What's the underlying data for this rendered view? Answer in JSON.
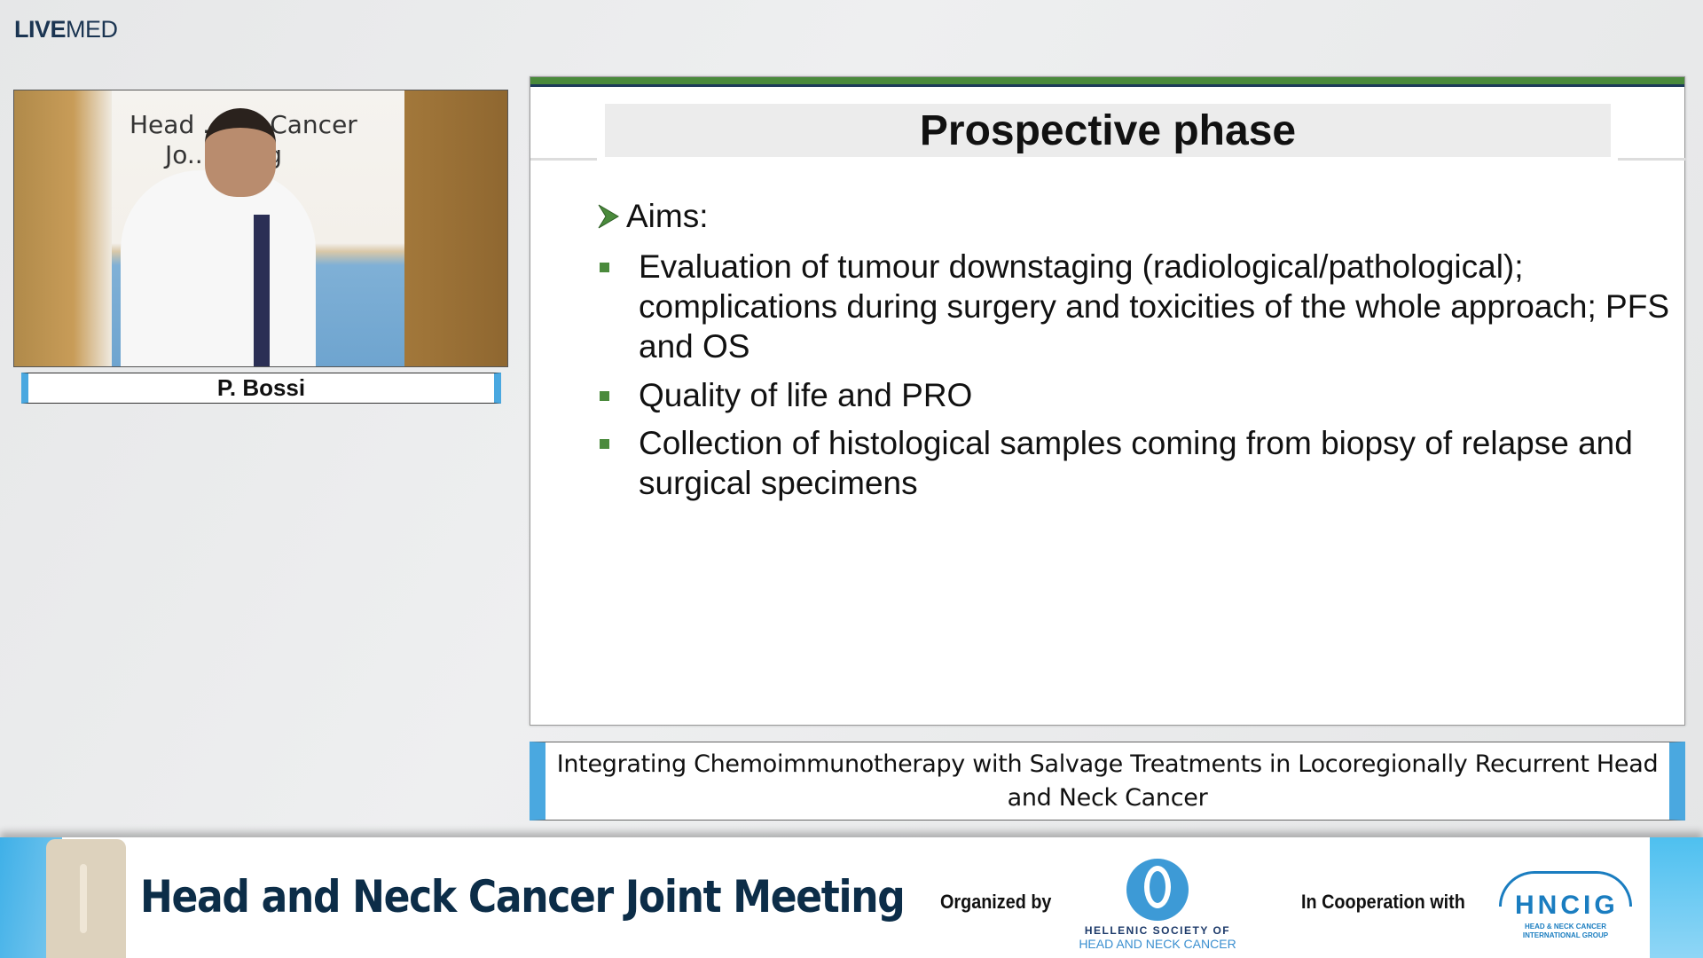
{
  "brand": {
    "bold": "LIVE",
    "light": "MED"
  },
  "video": {
    "backdrop_text_1": "Head ... ck Cancer",
    "backdrop_text_2": "Jo... eting",
    "speaker_name": "P. Bossi"
  },
  "slide": {
    "title": "Prospective phase",
    "aims_label": "Aims:",
    "bullets": [
      "Evaluation of tumour downstaging (radiological/pathological); complications during surgery and toxicities of the whole approach; PFS and OS",
      "Quality of life and PRO",
      "Collection of histological samples coming from biopsy of relapse and surgical specimens"
    ],
    "accent_color": "#4a8a3c"
  },
  "caption": "Integrating Chemoimmunotherapy with Salvage Treatments in Locoregionally Recurrent Head and Neck Cancer",
  "footer": {
    "title": "Head and Neck Cancer Joint Meeting",
    "organized_by": "Organized by",
    "organizer_line1": "HELLENIC SOCIETY OF",
    "organizer_line2": "HEAD AND NECK CANCER",
    "cooperation": "In Cooperation with",
    "partner_abbr": "HNCIG",
    "partner_full": "HEAD & NECK CANCER INTERNATIONAL GROUP"
  }
}
